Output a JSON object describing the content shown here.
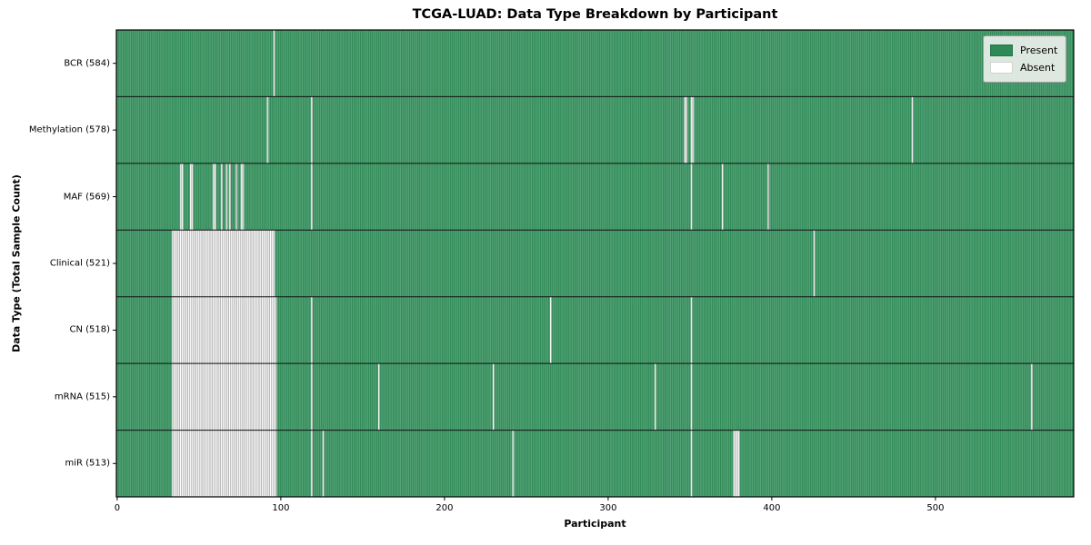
{
  "figure": {
    "title": "TCGA-LUAD: Data Type Breakdown by Participant",
    "xlabel": "Participant",
    "ylabel": "Data Type (Total Sample Count)"
  },
  "legend": {
    "items": [
      {
        "label": "Present",
        "color": "#2e8b57"
      },
      {
        "label": "Absent",
        "color": "#ffffff"
      }
    ]
  },
  "chart_data": {
    "type": "heatmap",
    "title": "TCGA-LUAD: Data Type Breakdown by Participant",
    "xlabel": "Participant",
    "ylabel": "Data Type (Total Sample Count)",
    "legend": [
      "Present",
      "Absent"
    ],
    "legend_position": "upper right",
    "x_ticks": [
      0,
      100,
      200,
      300,
      400,
      500
    ],
    "x_range": [
      0,
      585
    ],
    "n_participants": 585,
    "value_colors": {
      "present": "#2e8b57",
      "absent": "#ffffff"
    },
    "row_separator_color": "#111111",
    "cell_edge_on_green": "rgba(255,255,255,0.33)",
    "cell_edge_on_white": "#8f8f8f",
    "rows": [
      {
        "name": "BCR",
        "count": 584,
        "label": "BCR (584)",
        "absent_ranges": [
          [
            96,
            96
          ]
        ]
      },
      {
        "name": "Methylation",
        "count": 578,
        "label": "Methylation (578)",
        "absent_ranges": [
          [
            92,
            92
          ],
          [
            119,
            119
          ],
          [
            347,
            348
          ],
          [
            351,
            352
          ],
          [
            486,
            486
          ]
        ]
      },
      {
        "name": "MAF",
        "count": 569,
        "label": "MAF (569)",
        "absent_ranges": [
          [
            39,
            40
          ],
          [
            45,
            46
          ],
          [
            59,
            60
          ],
          [
            64,
            64
          ],
          [
            67,
            67
          ],
          [
            69,
            69
          ],
          [
            73,
            73
          ],
          [
            76,
            77
          ],
          [
            119,
            119
          ],
          [
            351,
            351
          ],
          [
            370,
            370
          ],
          [
            398,
            398
          ]
        ]
      },
      {
        "name": "Clinical",
        "count": 521,
        "label": "Clinical (521)",
        "absent_ranges": [
          [
            34,
            96
          ],
          [
            426,
            426
          ]
        ]
      },
      {
        "name": "CN",
        "count": 518,
        "label": "CN (518)",
        "absent_ranges": [
          [
            34,
            97
          ],
          [
            119,
            119
          ],
          [
            265,
            265
          ],
          [
            351,
            351
          ]
        ]
      },
      {
        "name": "mRNA",
        "count": 515,
        "label": "mRNA (515)",
        "absent_ranges": [
          [
            34,
            97
          ],
          [
            119,
            119
          ],
          [
            160,
            160
          ],
          [
            230,
            230
          ],
          [
            329,
            329
          ],
          [
            351,
            351
          ],
          [
            559,
            559
          ]
        ]
      },
      {
        "name": "miR",
        "count": 513,
        "label": "miR (513)",
        "absent_ranges": [
          [
            34,
            97
          ],
          [
            119,
            119
          ],
          [
            126,
            126
          ],
          [
            242,
            242
          ],
          [
            351,
            351
          ],
          [
            377,
            380
          ]
        ]
      }
    ]
  }
}
